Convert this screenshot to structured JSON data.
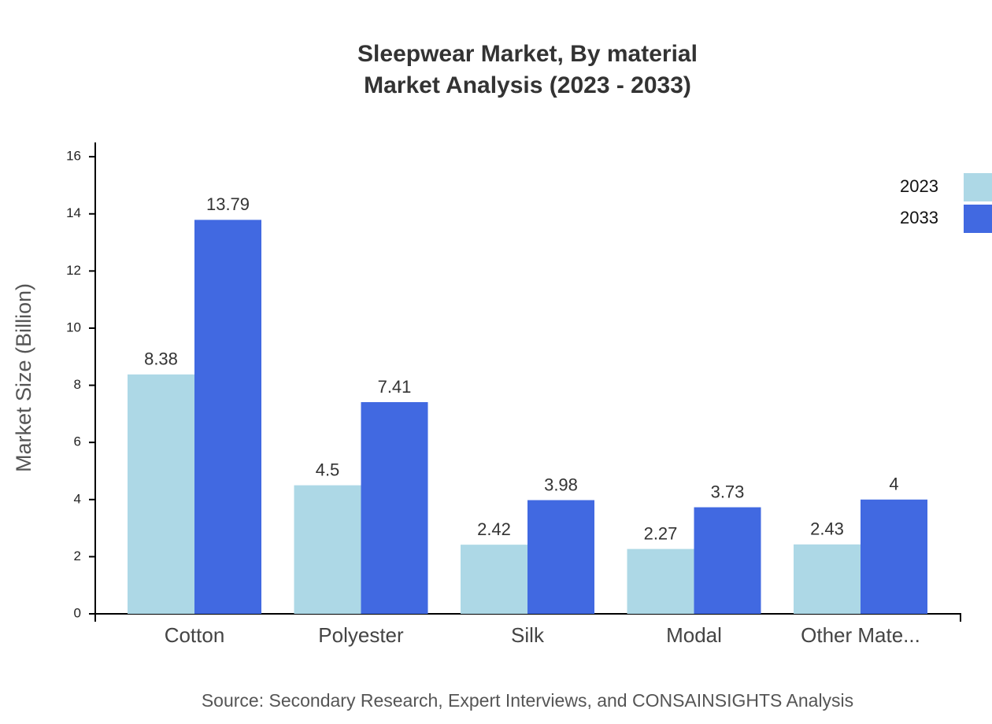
{
  "chart_data": {
    "type": "bar",
    "title": "Sleepwear Market, By material",
    "subtitle": "Market Analysis (2023 - 2033)",
    "y_label": "Market Size (Billion)",
    "source": "Source: Secondary Research, Expert Interviews, and CONSAINSIGHTS Analysis",
    "categories": [
      "Cotton",
      "Polyester",
      "Silk",
      "Modal",
      "Other Mate..."
    ],
    "series": [
      {
        "name": "2023",
        "color": "#add8e6",
        "values": [
          8.38,
          4.5,
          2.42,
          2.27,
          2.43
        ]
      },
      {
        "name": "2033",
        "color": "#4169e1",
        "values": [
          13.79,
          7.41,
          3.98,
          3.73,
          4
        ]
      }
    ],
    "ylim": [
      0,
      16.5
    ],
    "yticks": [
      0,
      2,
      4,
      6,
      8,
      10,
      12,
      14,
      16
    ],
    "legend": "top-right"
  }
}
